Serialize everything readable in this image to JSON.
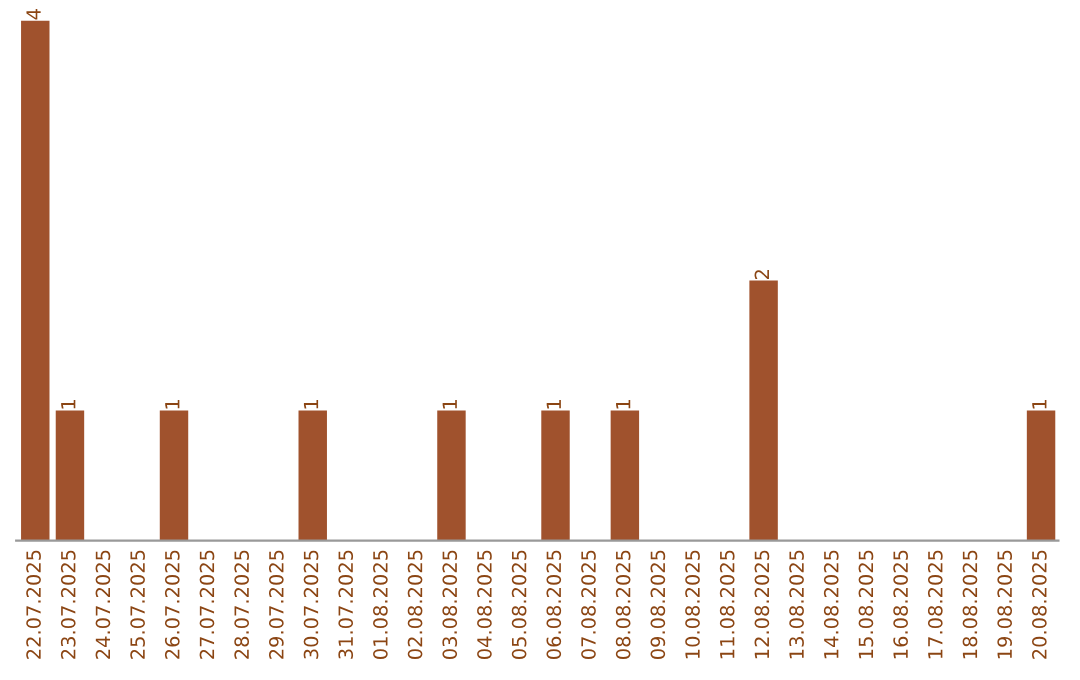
{
  "chart_data": {
    "type": "bar",
    "categories": [
      "22.07.2025",
      "23.07.2025",
      "24.07.2025",
      "25.07.2025",
      "26.07.2025",
      "27.07.2025",
      "28.07.2025",
      "29.07.2025",
      "30.07.2025",
      "31.07.2025",
      "01.08.2025",
      "02.08.2025",
      "03.08.2025",
      "04.08.2025",
      "05.08.2025",
      "06.08.2025",
      "07.08.2025",
      "08.08.2025",
      "09.08.2025",
      "10.08.2025",
      "11.08.2025",
      "12.08.2025",
      "13.08.2025",
      "14.08.2025",
      "15.08.2025",
      "16.08.2025",
      "17.08.2025",
      "18.08.2025",
      "19.08.2025",
      "20.08.2025"
    ],
    "values": [
      4,
      1,
      0,
      0,
      1,
      0,
      0,
      0,
      1,
      0,
      0,
      0,
      1,
      0,
      0,
      1,
      0,
      1,
      0,
      0,
      0,
      2,
      0,
      0,
      0,
      0,
      0,
      0,
      0,
      1
    ],
    "value_labels": [
      "4",
      "1",
      null,
      null,
      "1",
      null,
      null,
      null,
      "1",
      null,
      null,
      null,
      "1",
      null,
      null,
      "1",
      null,
      "1",
      null,
      null,
      null,
      "2",
      null,
      null,
      null,
      null,
      null,
      null,
      null,
      "1"
    ],
    "color": "#a0522d",
    "grid": false,
    "legend": false
  }
}
